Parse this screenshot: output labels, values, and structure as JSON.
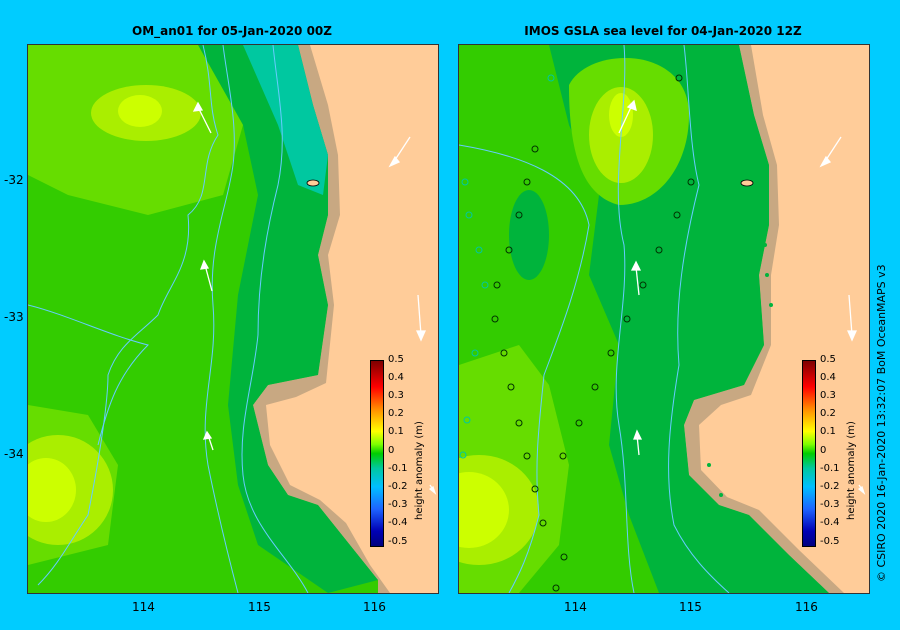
{
  "left_panel": {
    "title": "OM_an01  for 05-Jan-2020 00Z"
  },
  "right_panel": {
    "title": "IMOS GSLA sea level  for 04-Jan-2020 12Z"
  },
  "axes": {
    "y_ticks": [
      "-32",
      "-33",
      "-34"
    ],
    "x_ticks": [
      "114",
      "115",
      "116"
    ]
  },
  "colorbar": {
    "label": "height anomaly (m)",
    "ticks": [
      "0.5",
      "0.4",
      "0.3",
      "0.2",
      "0.1",
      "0",
      "-0.1",
      "-0.2",
      "-0.3",
      "-0.4",
      "-0.5"
    ]
  },
  "credit": "© CSIRO 2020   16-Jan-2020 13:32:07 BoM OceanMAPS v3",
  "colors": {
    "background": "#00ccff",
    "land": "#ffcc99",
    "coast": "#c8a882",
    "anomaly_0_0.1": "#33cc00",
    "anomaly_0.1_0.2": "#ccff00",
    "anomaly_-0.1_0": "#00b43c",
    "anomaly_-0.2_-0.1": "#00c8a0",
    "bathymetry_contour": "#66ccff",
    "arrow": "#ffffff"
  }
}
